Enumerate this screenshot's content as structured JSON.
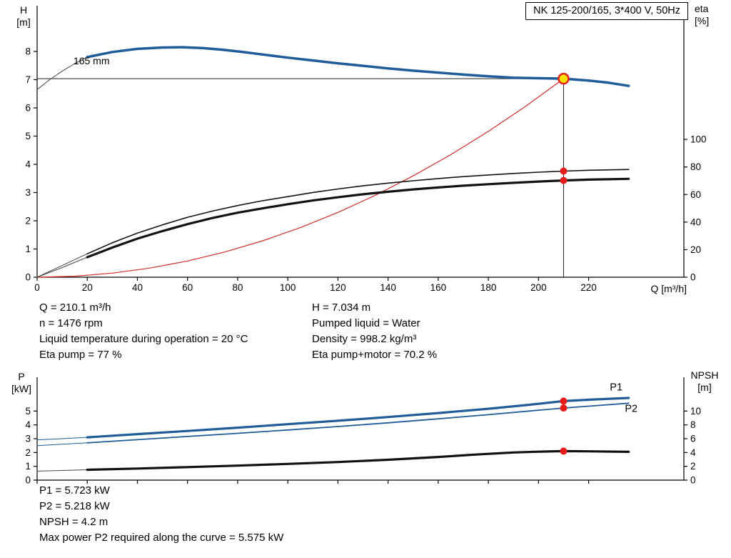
{
  "header": {
    "title": "NK 125-200/165, 3*400 V, 50Hz"
  },
  "axis_labels": {
    "h": "H\n[m]",
    "eta": "eta\n[%]",
    "q": "Q [m³/h]",
    "p": "P\n[kW]",
    "npsh": "NPSH\n[m]"
  },
  "info_top": {
    "left": [
      "Q = 210.1 m³/h",
      "n = 1476 rpm",
      "Liquid temperature during operation = 20 °C",
      "Eta pump = 77 %"
    ],
    "right": [
      "H = 7.034 m",
      "Pumped liquid = Water",
      "Density = 998.2 kg/m³",
      "Eta pump+motor = 70.2 %"
    ]
  },
  "info_bottom": [
    "P1 = 5.723 kW",
    "P2 = 5.218 kW",
    "NPSH = 4.2 m",
    "Max power P2 required along the curve = 5.575 kW"
  ],
  "colors": {
    "curve_blue": "#1f5c99",
    "curve_black": "#111111",
    "system_red": "#d42a2a",
    "dot_red": "#e81b1b",
    "duty_yellow": "#ffdf00",
    "axis": "#000000"
  },
  "chart_data": [
    {
      "id": "qh-eta-chart",
      "type": "line",
      "title": "NK 125-200/165, 3*400 V, 50Hz",
      "xlabel": "Q [m³/h]",
      "ylabel_left": "H [m]",
      "ylabel_right": "eta [%]",
      "plot": {
        "l": 52,
        "r": 958,
        "t": 8,
        "b": 388
      },
      "xlim": [
        0,
        258
      ],
      "ylim": [
        0,
        9.62
      ],
      "y2lim": [
        0,
        197
      ],
      "xticks": [
        0,
        20,
        40,
        60,
        80,
        100,
        120,
        140,
        160,
        180,
        200,
        220
      ],
      "xtick_labels": true,
      "yticks": [
        0,
        1,
        2,
        3,
        4,
        5,
        6,
        7,
        8
      ],
      "y2ticks": [
        0,
        20,
        40,
        60,
        80,
        100
      ],
      "ref_lines": [
        {
          "type": "h",
          "y": 7.034,
          "x0": 0,
          "x1": 210
        },
        {
          "type": "v",
          "x": 210,
          "y0": 0,
          "y1": 7.034
        }
      ],
      "series": [
        {
          "name": "qh-curve-lead-in",
          "axis": "left",
          "color": "#444444",
          "width": 1,
          "points": [
            [
              0,
              6.65
            ],
            [
              5,
              7.0
            ],
            [
              10,
              7.3
            ],
            [
              15,
              7.57
            ],
            [
              20,
              7.8
            ]
          ]
        },
        {
          "name": "qh-curve-165mm",
          "axis": "left",
          "color": "#1f5c99",
          "width": 3.5,
          "points": [
            [
              20,
              7.8
            ],
            [
              30,
              7.98
            ],
            [
              40,
              8.09
            ],
            [
              50,
              8.14
            ],
            [
              58,
              8.15
            ],
            [
              66,
              8.12
            ],
            [
              74,
              8.06
            ],
            [
              82,
              7.98
            ],
            [
              90,
              7.89
            ],
            [
              100,
              7.78
            ],
            [
              110,
              7.68
            ],
            [
              120,
              7.58
            ],
            [
              130,
              7.49
            ],
            [
              140,
              7.4
            ],
            [
              150,
              7.32
            ],
            [
              160,
              7.25
            ],
            [
              170,
              7.18
            ],
            [
              180,
              7.12
            ],
            [
              190,
              7.07
            ],
            [
              200,
              7.05
            ],
            [
              210,
              7.034
            ],
            [
              220,
              6.97
            ],
            [
              228,
              6.89
            ],
            [
              236,
              6.78
            ]
          ]
        },
        {
          "name": "system-curve",
          "axis": "left",
          "color": "#d42a2a",
          "width": 1.2,
          "points": [
            [
              0,
              0
            ],
            [
              15,
              0.036
            ],
            [
              30,
              0.144
            ],
            [
              45,
              0.323
            ],
            [
              60,
              0.574
            ],
            [
              75,
              0.897
            ],
            [
              90,
              1.292
            ],
            [
              105,
              1.758
            ],
            [
              120,
              2.296
            ],
            [
              135,
              2.906
            ],
            [
              150,
              3.589
            ],
            [
              165,
              4.342
            ],
            [
              180,
              5.167
            ],
            [
              195,
              6.064
            ],
            [
              210,
              7.034
            ]
          ]
        },
        {
          "name": "eta-pump-lead-in",
          "axis": "right",
          "color": "#444444",
          "width": 1,
          "points": [
            [
              0,
              0
            ],
            [
              10,
              8.5
            ],
            [
              20,
              17
            ]
          ]
        },
        {
          "name": "eta-pump-curve",
          "axis": "right",
          "color": "#111111",
          "width": 1.6,
          "points": [
            [
              20,
              17
            ],
            [
              30,
              25
            ],
            [
              40,
              32
            ],
            [
              50,
              38
            ],
            [
              60,
              43.5
            ],
            [
              70,
              48
            ],
            [
              80,
              52
            ],
            [
              90,
              55.5
            ],
            [
              100,
              58.5
            ],
            [
              110,
              61.5
            ],
            [
              120,
              64
            ],
            [
              130,
              66.3
            ],
            [
              140,
              68.3
            ],
            [
              150,
              70
            ],
            [
              160,
              71.6
            ],
            [
              170,
              73
            ],
            [
              180,
              74.2
            ],
            [
              190,
              75.3
            ],
            [
              200,
              76.2
            ],
            [
              210,
              77
            ],
            [
              220,
              77.6
            ],
            [
              236,
              78.2
            ]
          ]
        },
        {
          "name": "eta-pump-motor-lead-in",
          "axis": "right",
          "color": "#444444",
          "width": 1,
          "points": [
            [
              0,
              0
            ],
            [
              10,
              7
            ],
            [
              20,
              14.5
            ]
          ]
        },
        {
          "name": "eta-pump-motor-curve",
          "axis": "right",
          "color": "#111111",
          "width": 3.2,
          "points": [
            [
              20,
              14.5
            ],
            [
              30,
              21.5
            ],
            [
              40,
              28
            ],
            [
              50,
              33.5
            ],
            [
              60,
              38.5
            ],
            [
              70,
              43
            ],
            [
              80,
              46.8
            ],
            [
              90,
              50
            ],
            [
              100,
              53
            ],
            [
              110,
              55.7
            ],
            [
              120,
              58
            ],
            [
              130,
              60.2
            ],
            [
              140,
              62
            ],
            [
              150,
              63.7
            ],
            [
              160,
              65.1
            ],
            [
              170,
              66.4
            ],
            [
              180,
              67.5
            ],
            [
              190,
              68.5
            ],
            [
              200,
              69.4
            ],
            [
              210,
              70.2
            ],
            [
              220,
              70.8
            ],
            [
              236,
              71.4
            ]
          ]
        }
      ],
      "markers": [
        {
          "name": "eta-pump-point",
          "x": 210,
          "y": 77,
          "axis": "right",
          "r": 5,
          "fill": "#e81b1b"
        },
        {
          "name": "eta-pump-motor-point",
          "x": 210,
          "y": 70.2,
          "axis": "right",
          "r": 5,
          "fill": "#e81b1b"
        },
        {
          "name": "duty-point",
          "x": 210,
          "y": 7.034,
          "axis": "left",
          "r": 7,
          "fill": "#ffdf00",
          "stroke": "#e02020",
          "stroke_width": 2.5
        }
      ],
      "labels": [
        {
          "name": "impeller-diameter-label",
          "text": "165 mm",
          "x": 14.5,
          "y": 7.55,
          "axis": "left",
          "anchor": "start",
          "color": "#000000",
          "size": 14
        }
      ]
    },
    {
      "id": "power-npsh-chart",
      "type": "line",
      "ylabel_left": "P [kW]",
      "ylabel_right": "NPSH [m]",
      "plot": {
        "l": 52,
        "r": 958,
        "t": 528,
        "b": 672
      },
      "xlim": [
        0,
        258
      ],
      "ylim": [
        0,
        7.45
      ],
      "y2lim": [
        0,
        14.9
      ],
      "xticks": [
        0,
        20,
        40,
        60,
        80,
        100,
        120,
        140,
        160,
        180,
        200,
        220
      ],
      "xtick_labels": false,
      "yticks": [
        0,
        1,
        2,
        3,
        4,
        5
      ],
      "y2ticks": [
        0,
        2,
        4,
        6,
        8,
        10
      ],
      "ref_lines": [],
      "series": [
        {
          "name": "p1-lead-in",
          "axis": "left",
          "color": "#1f5c99",
          "width": 1,
          "points": [
            [
              0,
              2.92
            ],
            [
              10,
              3.0
            ],
            [
              20,
              3.1
            ]
          ]
        },
        {
          "name": "p1-curve",
          "axis": "left",
          "color": "#1f5c99",
          "width": 3.2,
          "points": [
            [
              20,
              3.1
            ],
            [
              40,
              3.33
            ],
            [
              60,
              3.56
            ],
            [
              80,
              3.8
            ],
            [
              100,
              4.05
            ],
            [
              120,
              4.3
            ],
            [
              140,
              4.57
            ],
            [
              160,
              4.86
            ],
            [
              180,
              5.17
            ],
            [
              195,
              5.43
            ],
            [
              210,
              5.723
            ],
            [
              222,
              5.84
            ],
            [
              236,
              5.95
            ]
          ]
        },
        {
          "name": "p2-lead-in",
          "axis": "left",
          "color": "#1f5c99",
          "width": 1,
          "points": [
            [
              0,
              2.5
            ],
            [
              10,
              2.6
            ],
            [
              20,
              2.7
            ]
          ]
        },
        {
          "name": "p2-curve",
          "axis": "left",
          "color": "#1f5c99",
          "width": 1.8,
          "points": [
            [
              20,
              2.7
            ],
            [
              40,
              2.93
            ],
            [
              60,
              3.16
            ],
            [
              80,
              3.39
            ],
            [
              100,
              3.63
            ],
            [
              120,
              3.88
            ],
            [
              140,
              4.15
            ],
            [
              160,
              4.44
            ],
            [
              180,
              4.74
            ],
            [
              195,
              4.98
            ],
            [
              210,
              5.218
            ],
            [
              222,
              5.38
            ],
            [
              236,
              5.57
            ]
          ]
        },
        {
          "name": "npsh-lead-in",
          "axis": "right",
          "color": "#444444",
          "width": 1,
          "points": [
            [
              0,
              1.3
            ],
            [
              10,
              1.4
            ],
            [
              20,
              1.5
            ]
          ]
        },
        {
          "name": "npsh-curve",
          "axis": "right",
          "color": "#111111",
          "width": 3.2,
          "points": [
            [
              20,
              1.5
            ],
            [
              40,
              1.68
            ],
            [
              60,
              1.88
            ],
            [
              80,
              2.1
            ],
            [
              100,
              2.35
            ],
            [
              120,
              2.62
            ],
            [
              140,
              2.95
            ],
            [
              160,
              3.35
            ],
            [
              175,
              3.7
            ],
            [
              190,
              4.0
            ],
            [
              200,
              4.12
            ],
            [
              210,
              4.2
            ],
            [
              220,
              4.17
            ],
            [
              236,
              4.1
            ]
          ]
        }
      ],
      "markers": [
        {
          "name": "p1-duty-point",
          "x": 210,
          "y": 5.723,
          "axis": "left",
          "r": 5,
          "fill": "#e81b1b"
        },
        {
          "name": "p2-duty-point",
          "x": 210,
          "y": 5.218,
          "axis": "left",
          "r": 5,
          "fill": "#e81b1b"
        },
        {
          "name": "npsh-duty-point",
          "x": 210,
          "y": 4.2,
          "axis": "right",
          "r": 5,
          "fill": "#e81b1b"
        }
      ],
      "labels": [
        {
          "name": "p1-curve-label",
          "text": "P1",
          "x": 231,
          "y": 6.5,
          "axis": "left",
          "anchor": "middle",
          "color": "#1f5c99",
          "size": 14.5
        },
        {
          "name": "p2-curve-label",
          "text": "P2",
          "x": 237,
          "y": 4.95,
          "axis": "left",
          "anchor": "middle",
          "color": "#1f5c99",
          "size": 14.5
        }
      ]
    }
  ]
}
